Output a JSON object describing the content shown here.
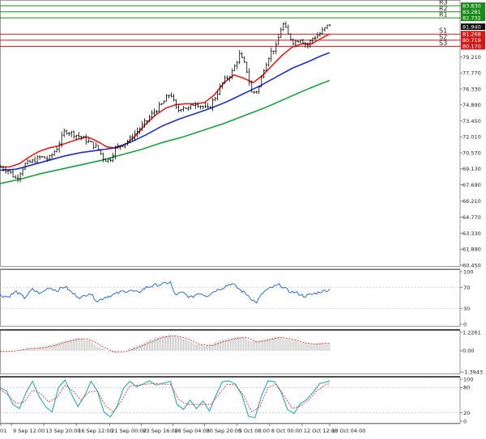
{
  "chart_data": {
    "type": "candlestick",
    "main_panel": {
      "price_axis_ticks": [
        "83.830",
        "83.281",
        "82.732",
        "81.940",
        "81.268",
        "80.719",
        "80.170",
        "79.210",
        "77.770",
        "76.330",
        "74.890",
        "73.450",
        "72.010",
        "70.570",
        "69.130",
        "67.690",
        "66.210",
        "64.770",
        "63.330",
        "61.890",
        "60.450"
      ],
      "ylim": [
        60.45,
        84.2
      ],
      "current_price": "81.940",
      "levels": [
        {
          "label": "R3",
          "value": 83.83,
          "color": "#1a8a1a"
        },
        {
          "label": "R2",
          "value": 83.281,
          "color": "#1a8a1a"
        },
        {
          "label": "R1",
          "value": 82.732,
          "color": "#1a8a1a"
        },
        {
          "label": "S1",
          "value": 81.268,
          "color": "#d11a1a"
        },
        {
          "label": "S2",
          "value": 80.719,
          "color": "#d11a1a"
        },
        {
          "label": "S3",
          "value": 80.17,
          "color": "#d11a1a"
        }
      ],
      "ma_series": [
        {
          "color": "#e02020",
          "points": [
            [
              0,
              69.3
            ],
            [
              12,
              69.3
            ],
            [
              24,
              69.6
            ],
            [
              36,
              70.2
            ],
            [
              48,
              70.7
            ],
            [
              60,
              71.0
            ],
            [
              72,
              71.2
            ],
            [
              84,
              71.5
            ],
            [
              96,
              71.8
            ],
            [
              108,
              72.0
            ],
            [
              120,
              71.6
            ],
            [
              132,
              71.1
            ],
            [
              144,
              71.0
            ],
            [
              156,
              71.4
            ],
            [
              168,
              72.2
            ],
            [
              180,
              73.2
            ],
            [
              192,
              74.0
            ],
            [
              204,
              74.6
            ],
            [
              216,
              74.9
            ],
            [
              228,
              75.0
            ],
            [
              240,
              75.0
            ],
            [
              252,
              75.1
            ],
            [
              264,
              75.8
            ],
            [
              276,
              76.9
            ],
            [
              288,
              77.6
            ],
            [
              300,
              77.3
            ],
            [
              312,
              76.9
            ],
            [
              324,
              77.6
            ],
            [
              336,
              78.5
            ],
            [
              348,
              79.4
            ],
            [
              360,
              80.1
            ],
            [
              372,
              80.4
            ],
            [
              384,
              80.4
            ],
            [
              396,
              80.9
            ],
            [
              406,
              81.3
            ]
          ]
        },
        {
          "color": "#2030c0",
          "points": [
            [
              0,
              69.0
            ],
            [
              20,
              69.1
            ],
            [
              40,
              69.5
            ],
            [
              60,
              69.9
            ],
            [
              80,
              70.3
            ],
            [
              100,
              70.6
            ],
            [
              120,
              70.8
            ],
            [
              140,
              71.0
            ],
            [
              160,
              71.5
            ],
            [
              180,
              72.2
            ],
            [
              200,
              73.0
            ],
            [
              220,
              73.6
            ],
            [
              240,
              74.1
            ],
            [
              260,
              74.6
            ],
            [
              280,
              75.2
            ],
            [
              300,
              75.9
            ],
            [
              320,
              76.6
            ],
            [
              340,
              77.4
            ],
            [
              360,
              78.2
            ],
            [
              380,
              78.8
            ],
            [
              395,
              79.3
            ],
            [
              406,
              79.6
            ]
          ]
        },
        {
          "color": "#18a040",
          "points": [
            [
              0,
              67.8
            ],
            [
              25,
              68.2
            ],
            [
              50,
              68.7
            ],
            [
              75,
              69.1
            ],
            [
              100,
              69.5
            ],
            [
              125,
              69.9
            ],
            [
              150,
              70.4
            ],
            [
              175,
              70.9
            ],
            [
              200,
              71.5
            ],
            [
              225,
              72.0
            ],
            [
              250,
              72.6
            ],
            [
              275,
              73.2
            ],
            [
              300,
              73.9
            ],
            [
              325,
              74.6
            ],
            [
              350,
              75.4
            ],
            [
              375,
              76.2
            ],
            [
              395,
              76.8
            ],
            [
              406,
              77.1
            ]
          ]
        }
      ],
      "close_path": [
        [
          0,
          69.3
        ],
        [
          10,
          69.0
        ],
        [
          20,
          68.2
        ],
        [
          30,
          69.5
        ],
        [
          40,
          69.8
        ],
        [
          50,
          70.2
        ],
        [
          60,
          70.0
        ],
        [
          70,
          71.0
        ],
        [
          80,
          72.6
        ],
        [
          90,
          72.3
        ],
        [
          100,
          72.0
        ],
        [
          110,
          71.5
        ],
        [
          120,
          71.0
        ],
        [
          128,
          70.0
        ],
        [
          135,
          69.9
        ],
        [
          142,
          71.0
        ],
        [
          150,
          71.3
        ],
        [
          160,
          71.8
        ],
        [
          170,
          72.6
        ],
        [
          180,
          73.4
        ],
        [
          190,
          74.3
        ],
        [
          200,
          75.0
        ],
        [
          210,
          76.0
        ],
        [
          218,
          74.3
        ],
        [
          225,
          74.8
        ],
        [
          232,
          74.5
        ],
        [
          240,
          75.1
        ],
        [
          248,
          74.8
        ],
        [
          256,
          74.5
        ],
        [
          265,
          75.6
        ],
        [
          275,
          77.0
        ],
        [
          285,
          77.7
        ],
        [
          295,
          79.4
        ],
        [
          303,
          78.3
        ],
        [
          310,
          76.0
        ],
        [
          318,
          76.2
        ],
        [
          325,
          78.2
        ],
        [
          333,
          79.6
        ],
        [
          340,
          80.1
        ],
        [
          348,
          82.3
        ],
        [
          355,
          81.2
        ],
        [
          362,
          80.5
        ],
        [
          370,
          80.9
        ],
        [
          378,
          80.2
        ],
        [
          385,
          80.9
        ],
        [
          392,
          81.2
        ],
        [
          398,
          81.6
        ],
        [
          406,
          82.2
        ]
      ]
    },
    "x_tick_labels": [
      "01",
      "9 Sep 12:00",
      "13 Sep 20:00",
      "16 Sep 12:00",
      "21 Sep 00:00",
      "23 Sep 16:00",
      "28 Sep 04:00",
      "30 Sep 20:00",
      "5 Oct 08:00",
      "8 Oct 00:00",
      "12 Oct 12:00",
      "15 Oct 04:00"
    ],
    "rsi_panel": {
      "axis_ticks": [
        "100",
        "70",
        "30",
        "0"
      ],
      "ylim": [
        0,
        100
      ],
      "line_color": "#1a5ec8",
      "points": [
        [
          0,
          55
        ],
        [
          10,
          52
        ],
        [
          20,
          62
        ],
        [
          30,
          50
        ],
        [
          40,
          66
        ],
        [
          50,
          58
        ],
        [
          60,
          70
        ],
        [
          70,
          64
        ],
        [
          80,
          72
        ],
        [
          90,
          58
        ],
        [
          100,
          50
        ],
        [
          110,
          60
        ],
        [
          120,
          44
        ],
        [
          130,
          52
        ],
        [
          140,
          56
        ],
        [
          150,
          62
        ],
        [
          160,
          64
        ],
        [
          170,
          60
        ],
        [
          180,
          70
        ],
        [
          190,
          74
        ],
        [
          200,
          76
        ],
        [
          210,
          80
        ],
        [
          215,
          56
        ],
        [
          225,
          60
        ],
        [
          235,
          50
        ],
        [
          245,
          60
        ],
        [
          255,
          54
        ],
        [
          265,
          64
        ],
        [
          275,
          70
        ],
        [
          285,
          78
        ],
        [
          295,
          66
        ],
        [
          305,
          56
        ],
        [
          315,
          40
        ],
        [
          325,
          62
        ],
        [
          335,
          70
        ],
        [
          345,
          75
        ],
        [
          355,
          63
        ],
        [
          365,
          60
        ],
        [
          375,
          53
        ],
        [
          385,
          57
        ],
        [
          395,
          62
        ],
        [
          406,
          66
        ]
      ]
    },
    "macd_panel": {
      "axis_ticks": [
        "1.2261",
        "0.00",
        "-1.3943"
      ],
      "ylim": [
        -1.3943,
        1.2261
      ],
      "bar_color": "#b4b4b4",
      "signal_color": "#e02020",
      "values": [
        [
          0,
          -0.05
        ],
        [
          15,
          0.0
        ],
        [
          30,
          0.15
        ],
        [
          45,
          0.2
        ],
        [
          60,
          0.35
        ],
        [
          75,
          0.6
        ],
        [
          90,
          0.8
        ],
        [
          100,
          0.85
        ],
        [
          110,
          0.65
        ],
        [
          120,
          0.3
        ],
        [
          135,
          -0.1
        ],
        [
          150,
          -0.05
        ],
        [
          165,
          0.25
        ],
        [
          180,
          0.6
        ],
        [
          195,
          0.95
        ],
        [
          210,
          1.05
        ],
        [
          225,
          0.85
        ],
        [
          240,
          0.45
        ],
        [
          255,
          0.35
        ],
        [
          270,
          0.65
        ],
        [
          285,
          0.85
        ],
        [
          298,
          0.95
        ],
        [
          310,
          0.6
        ],
        [
          325,
          0.75
        ],
        [
          340,
          0.95
        ],
        [
          355,
          0.8
        ],
        [
          370,
          0.55
        ],
        [
          385,
          0.45
        ],
        [
          396,
          0.55
        ],
        [
          406,
          0.5
        ]
      ]
    },
    "stoch_panel": {
      "axis_ticks": [
        "100",
        "80",
        "20",
        "0"
      ],
      "ylim": [
        0,
        100
      ],
      "main_color": "#18a0a0",
      "signal_color": "#e02020",
      "main_points": [
        [
          0,
          80
        ],
        [
          8,
          72
        ],
        [
          16,
          40
        ],
        [
          24,
          30
        ],
        [
          32,
          68
        ],
        [
          40,
          95
        ],
        [
          48,
          60
        ],
        [
          56,
          35
        ],
        [
          64,
          22
        ],
        [
          72,
          80
        ],
        [
          80,
          98
        ],
        [
          88,
          65
        ],
        [
          96,
          35
        ],
        [
          104,
          60
        ],
        [
          112,
          95
        ],
        [
          120,
          72
        ],
        [
          128,
          22
        ],
        [
          136,
          10
        ],
        [
          144,
          35
        ],
        [
          152,
          78
        ],
        [
          160,
          95
        ],
        [
          168,
          82
        ],
        [
          176,
          88
        ],
        [
          184,
          96
        ],
        [
          192,
          86
        ],
        [
          200,
          90
        ],
        [
          210,
          95
        ],
        [
          218,
          40
        ],
        [
          226,
          28
        ],
        [
          234,
          50
        ],
        [
          242,
          30
        ],
        [
          250,
          48
        ],
        [
          258,
          24
        ],
        [
          266,
          62
        ],
        [
          274,
          94
        ],
        [
          282,
          96
        ],
        [
          290,
          88
        ],
        [
          298,
          62
        ],
        [
          306,
          12
        ],
        [
          314,
          8
        ],
        [
          322,
          60
        ],
        [
          330,
          96
        ],
        [
          338,
          94
        ],
        [
          346,
          70
        ],
        [
          354,
          28
        ],
        [
          362,
          18
        ],
        [
          370,
          42
        ],
        [
          378,
          52
        ],
        [
          386,
          70
        ],
        [
          394,
          90
        ],
        [
          400,
          92
        ],
        [
          406,
          96
        ]
      ],
      "signal_points": [
        [
          0,
          76
        ],
        [
          10,
          62
        ],
        [
          20,
          42
        ],
        [
          30,
          46
        ],
        [
          40,
          74
        ],
        [
          50,
          66
        ],
        [
          60,
          46
        ],
        [
          70,
          56
        ],
        [
          80,
          86
        ],
        [
          90,
          72
        ],
        [
          100,
          50
        ],
        [
          110,
          70
        ],
        [
          120,
          72
        ],
        [
          130,
          36
        ],
        [
          140,
          22
        ],
        [
          150,
          50
        ],
        [
          160,
          84
        ],
        [
          170,
          86
        ],
        [
          180,
          88
        ],
        [
          190,
          90
        ],
        [
          200,
          88
        ],
        [
          210,
          88
        ],
        [
          220,
          52
        ],
        [
          230,
          40
        ],
        [
          240,
          40
        ],
        [
          250,
          40
        ],
        [
          260,
          40
        ],
        [
          270,
          66
        ],
        [
          280,
          88
        ],
        [
          290,
          86
        ],
        [
          300,
          62
        ],
        [
          310,
          22
        ],
        [
          320,
          34
        ],
        [
          330,
          80
        ],
        [
          340,
          88
        ],
        [
          350,
          60
        ],
        [
          360,
          30
        ],
        [
          370,
          36
        ],
        [
          380,
          50
        ],
        [
          390,
          72
        ],
        [
          400,
          86
        ],
        [
          406,
          90
        ]
      ]
    }
  }
}
